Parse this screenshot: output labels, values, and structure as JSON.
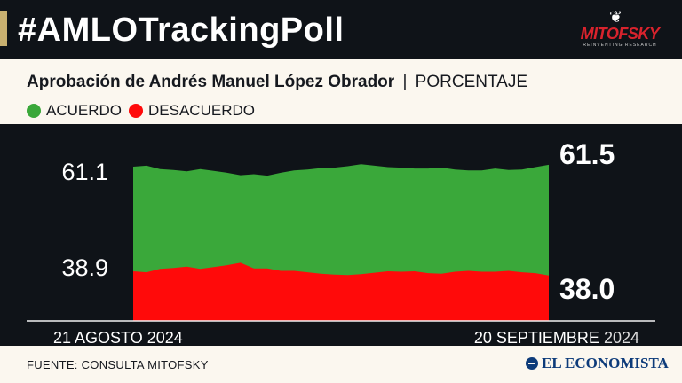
{
  "header": {
    "hashtag": "#AMLOTrackingPoll",
    "logo_name": "MITOFSKY",
    "logo_tagline": "REINVENTING RESEARCH"
  },
  "title": {
    "main": "Aprobación de Andrés Manuel López Obrador",
    "separator": "|",
    "unit": "PORCENTAJE"
  },
  "legend": {
    "agree": "ACUERDO",
    "disagree": "DESACUERDO"
  },
  "colors": {
    "agree": "#3aa83a",
    "disagree": "#ff0a0a",
    "chart_bg": "#0f1318",
    "page_bg": "#fbf7ef"
  },
  "footer": {
    "source": "FUENTE: CONSULTA MITOFSKY",
    "publisher": "EL ECONOMISTA"
  },
  "chart_data": {
    "type": "area",
    "x_start_label": "21 AGOSTO 2024",
    "x_end_label_bold": "20 SEPTIEMBRE",
    "x_end_label_year": "2024",
    "start_labels": {
      "agree": "61.1",
      "disagree": "38.9"
    },
    "end_labels": {
      "agree": "61.5",
      "disagree": "38.0"
    },
    "ylim": [
      30,
      65
    ],
    "series": [
      {
        "name": "ACUERDO",
        "values": [
          61.1,
          61.3,
          60.6,
          60.4,
          60.1,
          60.6,
          60.2,
          59.8,
          59.3,
          59.5,
          59.2,
          59.8,
          60.3,
          60.5,
          60.8,
          60.9,
          61.2,
          61.6,
          61.3,
          61.0,
          60.9,
          60.7,
          60.7,
          60.9,
          60.5,
          60.3,
          60.3,
          60.7,
          60.4,
          60.5,
          61.0,
          61.5
        ]
      },
      {
        "name": "DESACUERDO",
        "values": [
          38.9,
          38.7,
          39.4,
          39.6,
          39.9,
          39.4,
          39.8,
          40.2,
          40.7,
          39.5,
          39.5,
          39.0,
          39.0,
          38.7,
          38.4,
          38.2,
          38.1,
          38.3,
          38.6,
          38.9,
          38.8,
          38.9,
          38.5,
          38.4,
          38.8,
          39.0,
          38.8,
          38.8,
          39.0,
          38.7,
          38.5,
          38.0
        ]
      }
    ]
  }
}
